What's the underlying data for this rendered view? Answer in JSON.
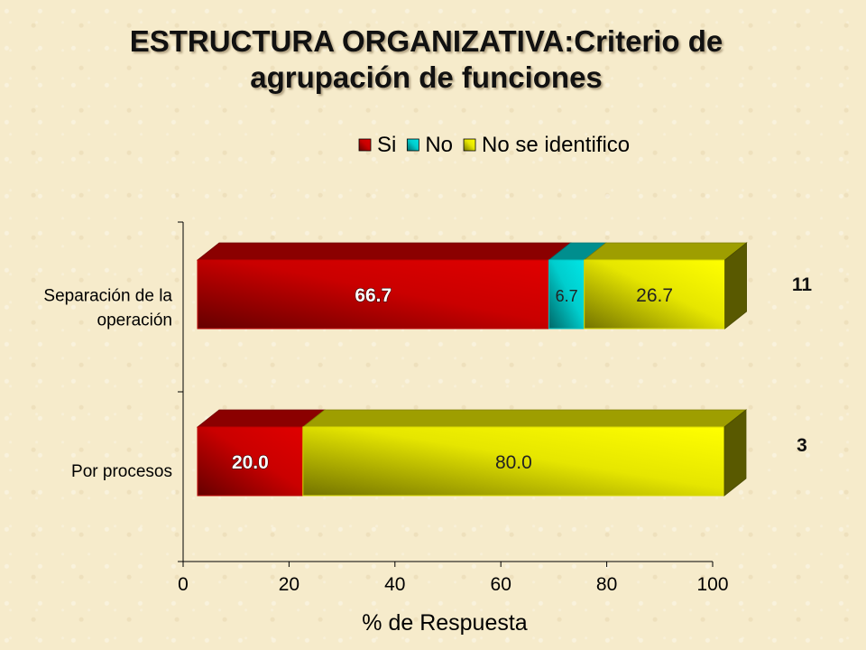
{
  "title_line1": "ESTRUCTURA ORGANIZATIVA:Criterio  de",
  "title_line2": "agrupación de funciones",
  "chart_data": {
    "type": "bar",
    "orientation": "horizontal",
    "stacked": true,
    "categories": [
      "Separación de la operación",
      "Por procesos"
    ],
    "category_label_lines": [
      [
        "Separación de la",
        "operación"
      ],
      [
        "Por procesos"
      ]
    ],
    "series": [
      {
        "name": "Si",
        "color": "#e00000",
        "values": [
          66.7,
          20.0
        ]
      },
      {
        "name": "No",
        "color": "#00e5e5",
        "values": [
          6.7,
          0
        ]
      },
      {
        "name": "No se identifico",
        "color": "#ffff00",
        "values": [
          26.7,
          80.0
        ]
      }
    ],
    "counts": [
      "11",
      "3"
    ],
    "xlabel": "% de Respuesta",
    "xlim": [
      0,
      100
    ],
    "xticks": [
      "0",
      "20",
      "40",
      "60",
      "80",
      "100"
    ],
    "legend_position": "top-right",
    "grid": false
  }
}
